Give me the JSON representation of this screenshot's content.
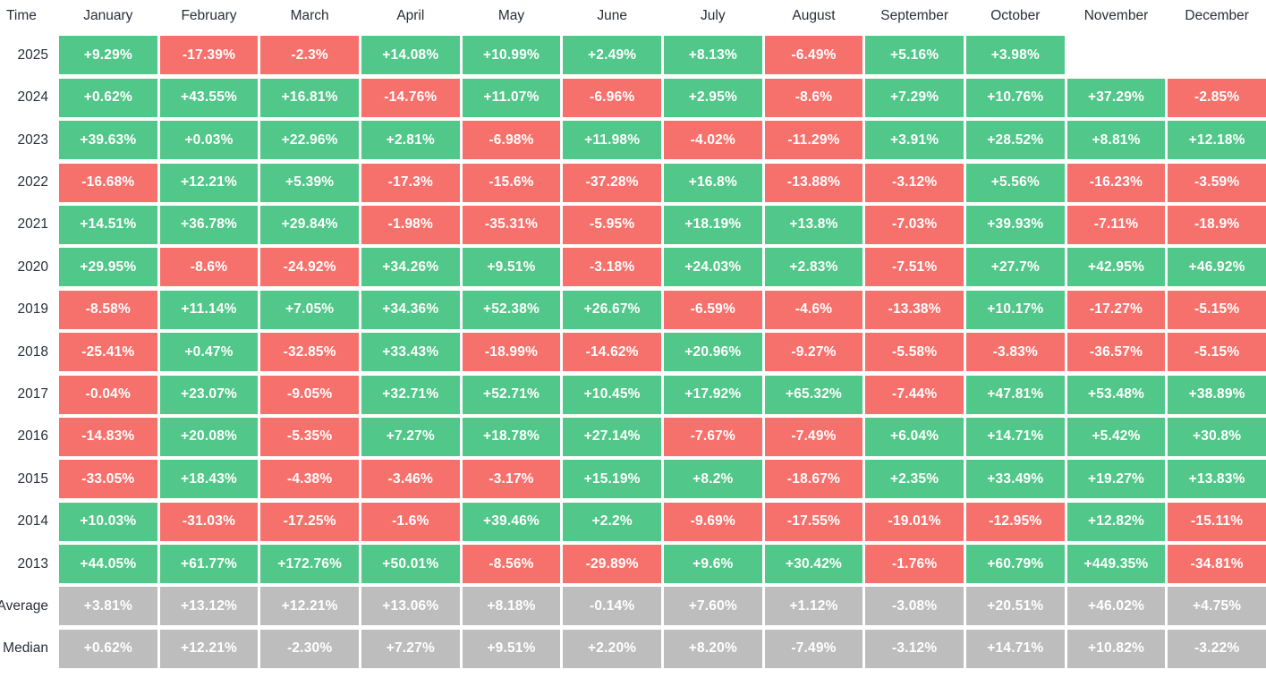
{
  "page": {
    "header_label": "Time"
  },
  "colors": {
    "positive": "#51c789",
    "negative": "#f7716c",
    "neutral": "#bdbdbd",
    "label_text": "#2a2e39",
    "cell_text": "#ffffff"
  },
  "months": [
    "January",
    "February",
    "March",
    "April",
    "May",
    "June",
    "July",
    "August",
    "September",
    "October",
    "November",
    "December"
  ],
  "table": {
    "rows": [
      {
        "label": "2025",
        "kind": "year",
        "cells": [
          "+9.29%",
          "-17.39%",
          "-2.3%",
          "+14.08%",
          "+10.99%",
          "+2.49%",
          "+8.13%",
          "-6.49%",
          "+5.16%",
          "+3.98%",
          null,
          null
        ]
      },
      {
        "label": "2024",
        "kind": "year",
        "cells": [
          "+0.62%",
          "+43.55%",
          "+16.81%",
          "-14.76%",
          "+11.07%",
          "-6.96%",
          "+2.95%",
          "-8.6%",
          "+7.29%",
          "+10.76%",
          "+37.29%",
          "-2.85%"
        ]
      },
      {
        "label": "2023",
        "kind": "year",
        "cells": [
          "+39.63%",
          "+0.03%",
          "+22.96%",
          "+2.81%",
          "-6.98%",
          "+11.98%",
          "-4.02%",
          "-11.29%",
          "+3.91%",
          "+28.52%",
          "+8.81%",
          "+12.18%"
        ]
      },
      {
        "label": "2022",
        "kind": "year",
        "cells": [
          "-16.68%",
          "+12.21%",
          "+5.39%",
          "-17.3%",
          "-15.6%",
          "-37.28%",
          "+16.8%",
          "-13.88%",
          "-3.12%",
          "+5.56%",
          "-16.23%",
          "-3.59%"
        ]
      },
      {
        "label": "2021",
        "kind": "year",
        "cells": [
          "+14.51%",
          "+36.78%",
          "+29.84%",
          "-1.98%",
          "-35.31%",
          "-5.95%",
          "+18.19%",
          "+13.8%",
          "-7.03%",
          "+39.93%",
          "-7.11%",
          "-18.9%"
        ]
      },
      {
        "label": "2020",
        "kind": "year",
        "cells": [
          "+29.95%",
          "-8.6%",
          "-24.92%",
          "+34.26%",
          "+9.51%",
          "-3.18%",
          "+24.03%",
          "+2.83%",
          "-7.51%",
          "+27.7%",
          "+42.95%",
          "+46.92%"
        ]
      },
      {
        "label": "2019",
        "kind": "year",
        "cells": [
          "-8.58%",
          "+11.14%",
          "+7.05%",
          "+34.36%",
          "+52.38%",
          "+26.67%",
          "-6.59%",
          "-4.6%",
          "-13.38%",
          "+10.17%",
          "-17.27%",
          "-5.15%"
        ]
      },
      {
        "label": "2018",
        "kind": "year",
        "cells": [
          "-25.41%",
          "+0.47%",
          "-32.85%",
          "+33.43%",
          "-18.99%",
          "-14.62%",
          "+20.96%",
          "-9.27%",
          "-5.58%",
          "-3.83%",
          "-36.57%",
          "-5.15%"
        ]
      },
      {
        "label": "2017",
        "kind": "year",
        "cells": [
          "-0.04%",
          "+23.07%",
          "-9.05%",
          "+32.71%",
          "+52.71%",
          "+10.45%",
          "+17.92%",
          "+65.32%",
          "-7.44%",
          "+47.81%",
          "+53.48%",
          "+38.89%"
        ]
      },
      {
        "label": "2016",
        "kind": "year",
        "cells": [
          "-14.83%",
          "+20.08%",
          "-5.35%",
          "+7.27%",
          "+18.78%",
          "+27.14%",
          "-7.67%",
          "-7.49%",
          "+6.04%",
          "+14.71%",
          "+5.42%",
          "+30.8%"
        ]
      },
      {
        "label": "2015",
        "kind": "year",
        "cells": [
          "-33.05%",
          "+18.43%",
          "-4.38%",
          "-3.46%",
          "-3.17%",
          "+15.19%",
          "+8.2%",
          "-18.67%",
          "+2.35%",
          "+33.49%",
          "+19.27%",
          "+13.83%"
        ]
      },
      {
        "label": "2014",
        "kind": "year",
        "cells": [
          "+10.03%",
          "-31.03%",
          "-17.25%",
          "-1.6%",
          "+39.46%",
          "+2.2%",
          "-9.69%",
          "-17.55%",
          "-19.01%",
          "-12.95%",
          "+12.82%",
          "-15.11%"
        ]
      },
      {
        "label": "2013",
        "kind": "year",
        "cells": [
          "+44.05%",
          "+61.77%",
          "+172.76%",
          "+50.01%",
          "-8.56%",
          "-29.89%",
          "+9.6%",
          "+30.42%",
          "-1.76%",
          "+60.79%",
          "+449.35%",
          "-34.81%"
        ]
      },
      {
        "label": "Average",
        "kind": "summary",
        "cells": [
          "+3.81%",
          "+13.12%",
          "+12.21%",
          "+13.06%",
          "+8.18%",
          "-0.14%",
          "+7.60%",
          "+1.12%",
          "-3.08%",
          "+20.51%",
          "+46.02%",
          "+4.75%"
        ]
      },
      {
        "label": "Median",
        "kind": "summary",
        "cells": [
          "+0.62%",
          "+12.21%",
          "-2.30%",
          "+7.27%",
          "+9.51%",
          "+2.20%",
          "+8.20%",
          "-7.49%",
          "-3.12%",
          "+14.71%",
          "+10.82%",
          "-3.22%"
        ]
      }
    ]
  },
  "chart_data": {
    "type": "heatmap",
    "title": "",
    "xlabel": "",
    "ylabel": "Time",
    "columns": [
      "January",
      "February",
      "March",
      "April",
      "May",
      "June",
      "July",
      "August",
      "September",
      "October",
      "November",
      "December"
    ],
    "rows": [
      "2025",
      "2024",
      "2023",
      "2022",
      "2021",
      "2020",
      "2019",
      "2018",
      "2017",
      "2016",
      "2015",
      "2014",
      "2013",
      "Average",
      "Median"
    ],
    "values_pct": [
      [
        9.29,
        -17.39,
        -2.3,
        14.08,
        10.99,
        2.49,
        8.13,
        -6.49,
        5.16,
        3.98,
        null,
        null
      ],
      [
        0.62,
        43.55,
        16.81,
        -14.76,
        11.07,
        -6.96,
        2.95,
        -8.6,
        7.29,
        10.76,
        37.29,
        -2.85
      ],
      [
        39.63,
        0.03,
        22.96,
        2.81,
        -6.98,
        11.98,
        -4.02,
        -11.29,
        3.91,
        28.52,
        8.81,
        12.18
      ],
      [
        -16.68,
        12.21,
        5.39,
        -17.3,
        -15.6,
        -37.28,
        16.8,
        -13.88,
        -3.12,
        5.56,
        -16.23,
        -3.59
      ],
      [
        14.51,
        36.78,
        29.84,
        -1.98,
        -35.31,
        -5.95,
        18.19,
        13.8,
        -7.03,
        39.93,
        -7.11,
        -18.9
      ],
      [
        29.95,
        -8.6,
        -24.92,
        34.26,
        9.51,
        -3.18,
        24.03,
        2.83,
        -7.51,
        27.7,
        42.95,
        46.92
      ],
      [
        -8.58,
        11.14,
        7.05,
        34.36,
        52.38,
        26.67,
        -6.59,
        -4.6,
        -13.38,
        10.17,
        -17.27,
        -5.15
      ],
      [
        -25.41,
        0.47,
        -32.85,
        33.43,
        -18.99,
        -14.62,
        20.96,
        -9.27,
        -5.58,
        -3.83,
        -36.57,
        -5.15
      ],
      [
        -0.04,
        23.07,
        -9.05,
        32.71,
        52.71,
        10.45,
        17.92,
        65.32,
        -7.44,
        47.81,
        53.48,
        38.89
      ],
      [
        -14.83,
        20.08,
        -5.35,
        7.27,
        18.78,
        27.14,
        -7.67,
        -7.49,
        6.04,
        14.71,
        5.42,
        30.8
      ],
      [
        -33.05,
        18.43,
        -4.38,
        -3.46,
        -3.17,
        15.19,
        8.2,
        -18.67,
        2.35,
        33.49,
        19.27,
        13.83
      ],
      [
        10.03,
        -31.03,
        -17.25,
        -1.6,
        39.46,
        2.2,
        -9.69,
        -17.55,
        -19.01,
        -12.95,
        12.82,
        -15.11
      ],
      [
        44.05,
        61.77,
        172.76,
        50.01,
        -8.56,
        -29.89,
        9.6,
        30.42,
        -1.76,
        60.79,
        449.35,
        -34.81
      ],
      [
        3.81,
        13.12,
        12.21,
        13.06,
        8.18,
        -0.14,
        7.6,
        1.12,
        -3.08,
        20.51,
        46.02,
        4.75
      ],
      [
        0.62,
        12.21,
        -2.3,
        7.27,
        9.51,
        2.2,
        8.2,
        -7.49,
        -3.12,
        14.71,
        10.82,
        -3.22
      ]
    ],
    "legend": "none",
    "grid": false,
    "color_rule": "green=positive, red=negative, gray=Average/Median summary rows, blank=no data"
  }
}
